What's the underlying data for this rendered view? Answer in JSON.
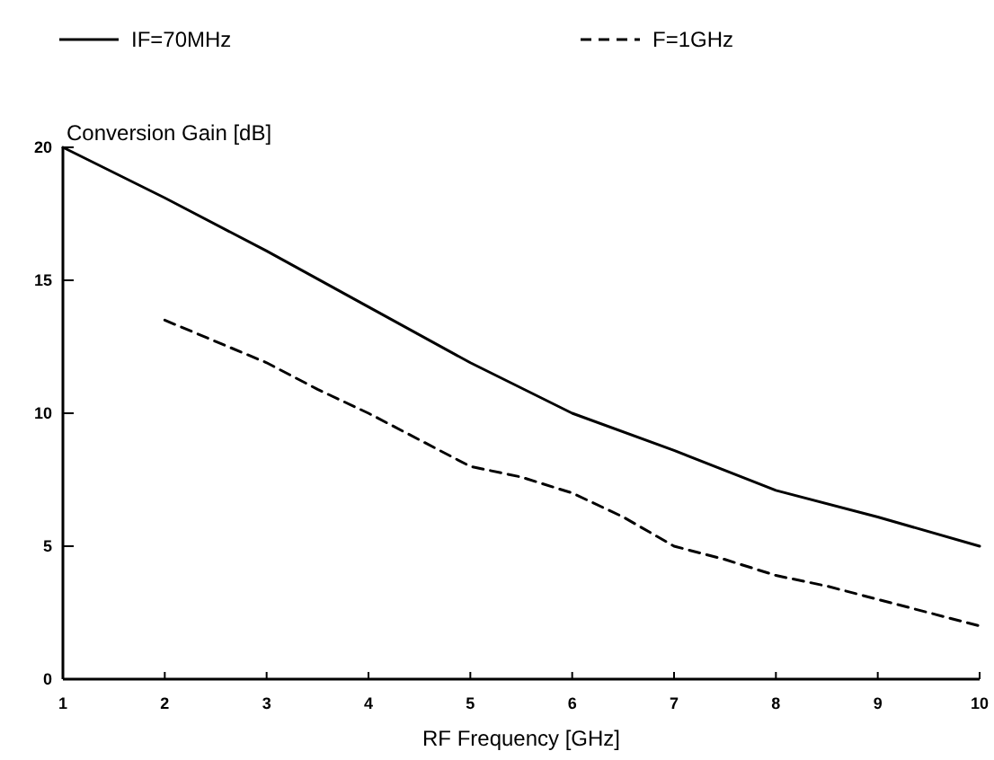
{
  "chart_data": {
    "type": "line",
    "xlabel": "RF Frequency   [GHz]",
    "ylabel": "Conversion Gain   [dB]",
    "xlim": [
      1,
      10
    ],
    "xticks": [
      1,
      2,
      3,
      4,
      5,
      6,
      7,
      8,
      9,
      10
    ],
    "ylim": [
      0,
      20
    ],
    "yticks": [
      0,
      5,
      10,
      15,
      20
    ],
    "grid": false,
    "legend": "top",
    "marker": "none",
    "series": [
      {
        "name": "IF=70MHz",
        "color": "#000000",
        "line_style": "solid",
        "x": [
          1,
          2,
          3,
          4,
          5,
          6,
          7,
          8,
          9,
          10
        ],
        "values": [
          20,
          18.1,
          16.1,
          14,
          11.9,
          10,
          8.6,
          7.1,
          6.1,
          5
        ]
      },
      {
        "name": "F=1GHz",
        "color": "#000000",
        "line_style": "dashed",
        "x": [
          2,
          2.5,
          3,
          3.5,
          4,
          4.5,
          5,
          5.5,
          6,
          6.5,
          7,
          7.5,
          8,
          8.5,
          9,
          9.5,
          10
        ],
        "values": [
          13.5,
          12.7,
          11.9,
          10.9,
          10,
          9,
          8,
          7.6,
          7,
          6.1,
          5,
          4.5,
          3.9,
          3.5,
          3,
          2.5,
          2
        ]
      }
    ]
  }
}
